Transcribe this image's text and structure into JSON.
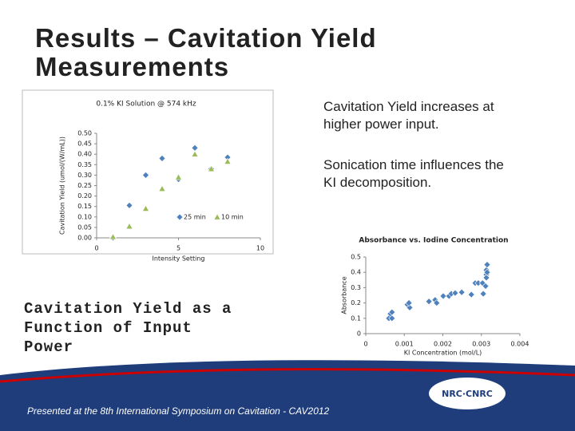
{
  "title": "Results – Cavitation Yield Measurements",
  "bullets": [
    "Cavitation Yield increases at higher power input.",
    "Sonication time influences the KI decomposition."
  ],
  "caption": "Cavitation Yield as a Function of Input Power",
  "footer": "Presented at the 8th International Symposium on Cavitation - CAV2012",
  "logo": "NRC·CNRC",
  "chart_data": [
    {
      "type": "scatter",
      "title": "0.1% KI Solution @ 574 kHz",
      "x_label": "Intensity Setting",
      "y_label": "Cavitation Yield (umol/(W/mL))",
      "x": [
        1,
        2,
        3,
        4,
        5,
        6,
        7,
        8
      ],
      "series": [
        {
          "name": "25 min",
          "color": "#4f81bd",
          "marker": "diamond",
          "values": [
            0.0,
            0.155,
            0.3,
            0.38,
            0.28,
            0.43,
            0.33,
            0.385
          ]
        },
        {
          "name": "10 min",
          "color": "#9bbb59",
          "marker": "triangle",
          "values": [
            0.005,
            0.055,
            0.14,
            0.235,
            0.29,
            0.4,
            0.33,
            0.365
          ]
        }
      ],
      "xlim": [
        0,
        10
      ],
      "xticks": [
        0,
        5,
        10
      ],
      "ylim": [
        0,
        0.5
      ],
      "yticks": [
        {
          "value": 0,
          "label": "0.00"
        },
        {
          "value": 0.05,
          "label": "0.05"
        },
        {
          "value": 0.1,
          "label": "0.10"
        },
        {
          "value": 0.15,
          "label": "0.15"
        },
        {
          "value": 0.2,
          "label": "0.20"
        },
        {
          "value": 0.25,
          "label": "0.25"
        },
        {
          "value": 0.3,
          "label": "0.30"
        },
        {
          "value": 0.35,
          "label": "0.35"
        },
        {
          "value": 0.4,
          "label": "0.40"
        },
        {
          "value": 0.45,
          "label": "0.45"
        },
        {
          "value": 0.5,
          "label": "0.50"
        }
      ],
      "grid": false
    },
    {
      "type": "scatter",
      "title": "Absorbance vs. Iodine Concentration",
      "x_label": "KI Concentration (mol/L)",
      "y_label": "Absorbance",
      "color": "#4f81bd",
      "marker": "diamond",
      "x": [
        0.0006,
        0.00064,
        0.00068,
        0.00068,
        0.00108,
        0.00114,
        0.00112,
        0.00164,
        0.0018,
        0.00184,
        0.00201,
        0.00216,
        0.00222,
        0.00232,
        0.00249,
        0.00274,
        0.00284,
        0.00292,
        0.00303,
        0.00305,
        0.00311,
        0.00313,
        0.00313,
        0.00315,
        0.00313,
        0.00315
      ],
      "values": [
        0.1,
        0.13,
        0.1,
        0.14,
        0.19,
        0.17,
        0.2,
        0.21,
        0.22,
        0.2,
        0.245,
        0.245,
        0.26,
        0.265,
        0.27,
        0.255,
        0.33,
        0.33,
        0.33,
        0.26,
        0.31,
        0.385,
        0.415,
        0.45,
        0.365,
        0.4
      ],
      "xlim": [
        0,
        0.004
      ],
      "xticks": [
        0,
        0.001,
        0.002,
        0.003,
        0.004
      ],
      "ylim": [
        0,
        0.5
      ],
      "yticks": [
        0,
        0.1,
        0.2,
        0.3,
        0.4,
        0.5
      ],
      "grid": false
    }
  ]
}
